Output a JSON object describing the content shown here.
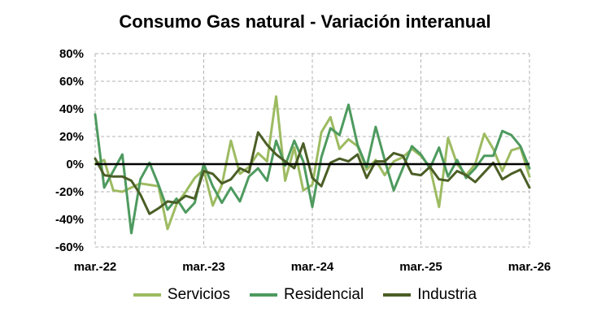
{
  "chart_data": {
    "type": "line",
    "title": "Consumo Gas natural - Variación interanual",
    "xlabel": "",
    "ylabel": "",
    "ylim": [
      -60,
      80
    ],
    "yticks": [
      -60,
      -40,
      -20,
      0,
      20,
      40,
      60,
      80
    ],
    "ytick_labels": [
      "-60%",
      "-40%",
      "-20%",
      "0%",
      "20%",
      "40%",
      "60%",
      "80%"
    ],
    "xtick_labels": [
      "mar.-22",
      "mar.-23",
      "mar.-24",
      "mar.-25",
      "mar.-26"
    ],
    "xtick_positions": [
      0,
      12,
      24,
      36,
      48
    ],
    "grid": true,
    "legend_position": "bottom",
    "series": [
      {
        "name": "Servicios",
        "color": "#9dbb61",
        "values": [
          0,
          3,
          -19,
          -20,
          -17,
          -14,
          -15,
          -16,
          -47,
          -29,
          -20,
          -10,
          -4,
          -30,
          -15,
          17,
          -7,
          -2,
          8,
          2,
          49,
          -12,
          12,
          -19,
          -15,
          23,
          34,
          11,
          18,
          13,
          -4,
          3,
          -8,
          2,
          5,
          11,
          6,
          -2,
          -31,
          19,
          0,
          -8,
          0,
          22,
          11,
          -5,
          10,
          12,
          -9
        ]
      },
      {
        "name": "Residencial",
        "color": "#4e9a5f",
        "values": [
          36,
          -17,
          -5,
          7,
          -50,
          -11,
          1,
          -15,
          -33,
          -25,
          -35,
          -28,
          0,
          -16,
          -28,
          -17,
          -27,
          -9,
          -3,
          -12,
          17,
          -1,
          17,
          2,
          -31,
          5,
          26,
          21,
          43,
          14,
          -2,
          27,
          3,
          -19,
          -3,
          13,
          7,
          -3,
          12,
          -9,
          3,
          -10,
          -3,
          6,
          6,
          24,
          21,
          13,
          -3
        ]
      },
      {
        "name": "Industria",
        "color": "#4b5e26",
        "values": [
          4,
          -8,
          -9,
          -9,
          -12,
          -22,
          -36,
          -32,
          -27,
          -28,
          -23,
          -25,
          -5,
          -7,
          -14,
          -11,
          -3,
          -6,
          23,
          14,
          7,
          2,
          -3,
          15,
          -10,
          -16,
          1,
          4,
          2,
          7,
          -10,
          2,
          2,
          8,
          6,
          -7,
          -8,
          -2,
          -11,
          -12,
          -5,
          -8,
          -13,
          -6,
          1,
          -11,
          -7,
          -4,
          -17
        ]
      }
    ]
  }
}
